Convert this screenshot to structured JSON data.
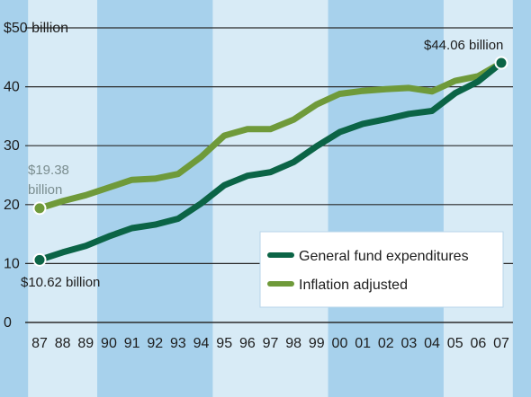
{
  "chart_data": {
    "type": "line",
    "title": "",
    "xlabel": "",
    "ylabel": "",
    "categories": [
      "87",
      "88",
      "89",
      "90",
      "91",
      "92",
      "93",
      "94",
      "95",
      "96",
      "97",
      "98",
      "99",
      "00",
      "01",
      "02",
      "03",
      "04",
      "05",
      "06",
      "07"
    ],
    "ylim": [
      0,
      50
    ],
    "yticks": [
      {
        "value": 0,
        "label": "0"
      },
      {
        "value": 10,
        "label": "10"
      },
      {
        "value": 20,
        "label": "20"
      },
      {
        "value": 30,
        "label": "30"
      },
      {
        "value": 40,
        "label": "40"
      },
      {
        "value": 50,
        "label": "$50 billion"
      }
    ],
    "grid": true,
    "legend_position": "lower-right",
    "series": [
      {
        "name": "General fund expenditures",
        "color": "#0b6446",
        "values": [
          10.62,
          11.9,
          13.0,
          14.6,
          16.0,
          16.6,
          17.6,
          20.2,
          23.3,
          24.9,
          25.5,
          27.2,
          29.9,
          32.3,
          33.7,
          34.5,
          35.4,
          35.9,
          38.9,
          40.9,
          44.06
        ]
      },
      {
        "name": "Inflation adjusted",
        "color": "#6f9a3a",
        "values": [
          19.38,
          20.6,
          21.6,
          22.9,
          24.2,
          24.4,
          25.2,
          28.1,
          31.7,
          32.8,
          32.8,
          34.4,
          37.0,
          38.8,
          39.3,
          39.6,
          39.8,
          39.2,
          41.0,
          41.8,
          44.06
        ]
      }
    ],
    "bands": {
      "light_color": "#d8ebf6",
      "dark_color": "#a7d1ec",
      "groups": [
        {
          "from": "87",
          "to": "89",
          "shade": "light"
        },
        {
          "from": "90",
          "to": "94",
          "shade": "dark"
        },
        {
          "from": "95",
          "to": "99",
          "shade": "light"
        },
        {
          "from": "00",
          "to": "04",
          "shade": "dark"
        },
        {
          "from": "05",
          "to": "07",
          "shade": "light"
        }
      ]
    },
    "annotations": [
      {
        "id": "start_gf",
        "text": "$10.62 billion",
        "series": 0,
        "index": 0,
        "color": "#1d1d1d"
      },
      {
        "id": "start_ia_1",
        "text": "$19.38",
        "series": 1,
        "index": 0,
        "color": "#7a8d8f"
      },
      {
        "id": "start_ia_2",
        "text": "billion",
        "series": 1,
        "index": 0,
        "color": "#7a8d8f"
      },
      {
        "id": "end",
        "text": "$44.06 billion",
        "series": 0,
        "index": 20,
        "color": "#1d1d1d"
      }
    ],
    "colors": {
      "background": "#a7d1ec",
      "gridline": "#2a2a2a",
      "axis": "#1d1d1d",
      "tick_text": "#1d1d1d",
      "legend_bg": "#ffffff"
    }
  }
}
